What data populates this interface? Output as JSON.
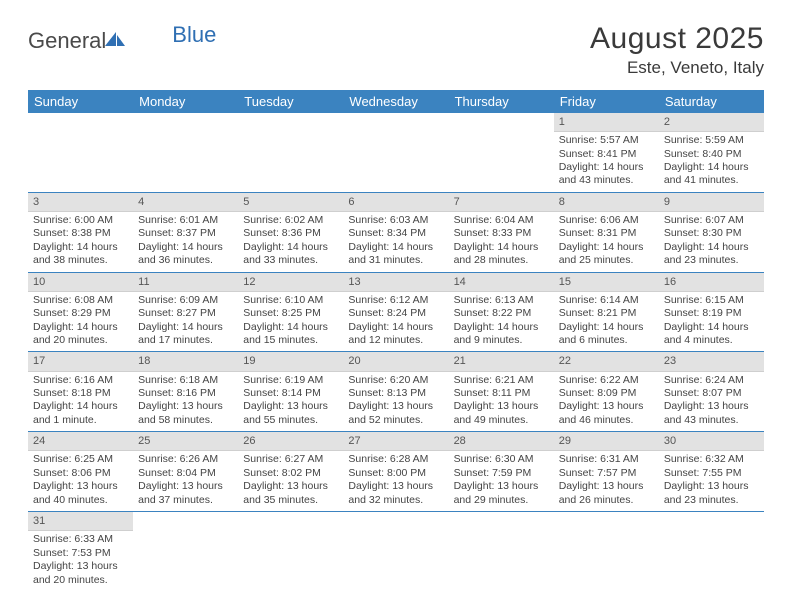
{
  "brand": {
    "part1": "General",
    "part2": "Blue"
  },
  "colors": {
    "header_bg": "#3b83c0",
    "header_text": "#ffffff",
    "daynum_bg": "#e2e2e2",
    "row_divider": "#3b83c0",
    "body_text": "#444444",
    "title_text": "#3a3a3a"
  },
  "typography": {
    "title_fontsize": 30,
    "location_fontsize": 17,
    "weekday_fontsize": 13,
    "cell_fontsize": 10.5
  },
  "title": "August 2025",
  "location": "Este, Veneto, Italy",
  "weekdays": [
    "Sunday",
    "Monday",
    "Tuesday",
    "Wednesday",
    "Thursday",
    "Friday",
    "Saturday"
  ],
  "weeks": [
    [
      null,
      null,
      null,
      null,
      null,
      {
        "n": "1",
        "sunrise": "Sunrise: 5:57 AM",
        "sunset": "Sunset: 8:41 PM",
        "daylight": "Daylight: 14 hours and 43 minutes."
      },
      {
        "n": "2",
        "sunrise": "Sunrise: 5:59 AM",
        "sunset": "Sunset: 8:40 PM",
        "daylight": "Daylight: 14 hours and 41 minutes."
      }
    ],
    [
      {
        "n": "3",
        "sunrise": "Sunrise: 6:00 AM",
        "sunset": "Sunset: 8:38 PM",
        "daylight": "Daylight: 14 hours and 38 minutes."
      },
      {
        "n": "4",
        "sunrise": "Sunrise: 6:01 AM",
        "sunset": "Sunset: 8:37 PM",
        "daylight": "Daylight: 14 hours and 36 minutes."
      },
      {
        "n": "5",
        "sunrise": "Sunrise: 6:02 AM",
        "sunset": "Sunset: 8:36 PM",
        "daylight": "Daylight: 14 hours and 33 minutes."
      },
      {
        "n": "6",
        "sunrise": "Sunrise: 6:03 AM",
        "sunset": "Sunset: 8:34 PM",
        "daylight": "Daylight: 14 hours and 31 minutes."
      },
      {
        "n": "7",
        "sunrise": "Sunrise: 6:04 AM",
        "sunset": "Sunset: 8:33 PM",
        "daylight": "Daylight: 14 hours and 28 minutes."
      },
      {
        "n": "8",
        "sunrise": "Sunrise: 6:06 AM",
        "sunset": "Sunset: 8:31 PM",
        "daylight": "Daylight: 14 hours and 25 minutes."
      },
      {
        "n": "9",
        "sunrise": "Sunrise: 6:07 AM",
        "sunset": "Sunset: 8:30 PM",
        "daylight": "Daylight: 14 hours and 23 minutes."
      }
    ],
    [
      {
        "n": "10",
        "sunrise": "Sunrise: 6:08 AM",
        "sunset": "Sunset: 8:29 PM",
        "daylight": "Daylight: 14 hours and 20 minutes."
      },
      {
        "n": "11",
        "sunrise": "Sunrise: 6:09 AM",
        "sunset": "Sunset: 8:27 PM",
        "daylight": "Daylight: 14 hours and 17 minutes."
      },
      {
        "n": "12",
        "sunrise": "Sunrise: 6:10 AM",
        "sunset": "Sunset: 8:25 PM",
        "daylight": "Daylight: 14 hours and 15 minutes."
      },
      {
        "n": "13",
        "sunrise": "Sunrise: 6:12 AM",
        "sunset": "Sunset: 8:24 PM",
        "daylight": "Daylight: 14 hours and 12 minutes."
      },
      {
        "n": "14",
        "sunrise": "Sunrise: 6:13 AM",
        "sunset": "Sunset: 8:22 PM",
        "daylight": "Daylight: 14 hours and 9 minutes."
      },
      {
        "n": "15",
        "sunrise": "Sunrise: 6:14 AM",
        "sunset": "Sunset: 8:21 PM",
        "daylight": "Daylight: 14 hours and 6 minutes."
      },
      {
        "n": "16",
        "sunrise": "Sunrise: 6:15 AM",
        "sunset": "Sunset: 8:19 PM",
        "daylight": "Daylight: 14 hours and 4 minutes."
      }
    ],
    [
      {
        "n": "17",
        "sunrise": "Sunrise: 6:16 AM",
        "sunset": "Sunset: 8:18 PM",
        "daylight": "Daylight: 14 hours and 1 minute."
      },
      {
        "n": "18",
        "sunrise": "Sunrise: 6:18 AM",
        "sunset": "Sunset: 8:16 PM",
        "daylight": "Daylight: 13 hours and 58 minutes."
      },
      {
        "n": "19",
        "sunrise": "Sunrise: 6:19 AM",
        "sunset": "Sunset: 8:14 PM",
        "daylight": "Daylight: 13 hours and 55 minutes."
      },
      {
        "n": "20",
        "sunrise": "Sunrise: 6:20 AM",
        "sunset": "Sunset: 8:13 PM",
        "daylight": "Daylight: 13 hours and 52 minutes."
      },
      {
        "n": "21",
        "sunrise": "Sunrise: 6:21 AM",
        "sunset": "Sunset: 8:11 PM",
        "daylight": "Daylight: 13 hours and 49 minutes."
      },
      {
        "n": "22",
        "sunrise": "Sunrise: 6:22 AM",
        "sunset": "Sunset: 8:09 PM",
        "daylight": "Daylight: 13 hours and 46 minutes."
      },
      {
        "n": "23",
        "sunrise": "Sunrise: 6:24 AM",
        "sunset": "Sunset: 8:07 PM",
        "daylight": "Daylight: 13 hours and 43 minutes."
      }
    ],
    [
      {
        "n": "24",
        "sunrise": "Sunrise: 6:25 AM",
        "sunset": "Sunset: 8:06 PM",
        "daylight": "Daylight: 13 hours and 40 minutes."
      },
      {
        "n": "25",
        "sunrise": "Sunrise: 6:26 AM",
        "sunset": "Sunset: 8:04 PM",
        "daylight": "Daylight: 13 hours and 37 minutes."
      },
      {
        "n": "26",
        "sunrise": "Sunrise: 6:27 AM",
        "sunset": "Sunset: 8:02 PM",
        "daylight": "Daylight: 13 hours and 35 minutes."
      },
      {
        "n": "27",
        "sunrise": "Sunrise: 6:28 AM",
        "sunset": "Sunset: 8:00 PM",
        "daylight": "Daylight: 13 hours and 32 minutes."
      },
      {
        "n": "28",
        "sunrise": "Sunrise: 6:30 AM",
        "sunset": "Sunset: 7:59 PM",
        "daylight": "Daylight: 13 hours and 29 minutes."
      },
      {
        "n": "29",
        "sunrise": "Sunrise: 6:31 AM",
        "sunset": "Sunset: 7:57 PM",
        "daylight": "Daylight: 13 hours and 26 minutes."
      },
      {
        "n": "30",
        "sunrise": "Sunrise: 6:32 AM",
        "sunset": "Sunset: 7:55 PM",
        "daylight": "Daylight: 13 hours and 23 minutes."
      }
    ],
    [
      {
        "n": "31",
        "sunrise": "Sunrise: 6:33 AM",
        "sunset": "Sunset: 7:53 PM",
        "daylight": "Daylight: 13 hours and 20 minutes."
      },
      null,
      null,
      null,
      null,
      null,
      null
    ]
  ]
}
